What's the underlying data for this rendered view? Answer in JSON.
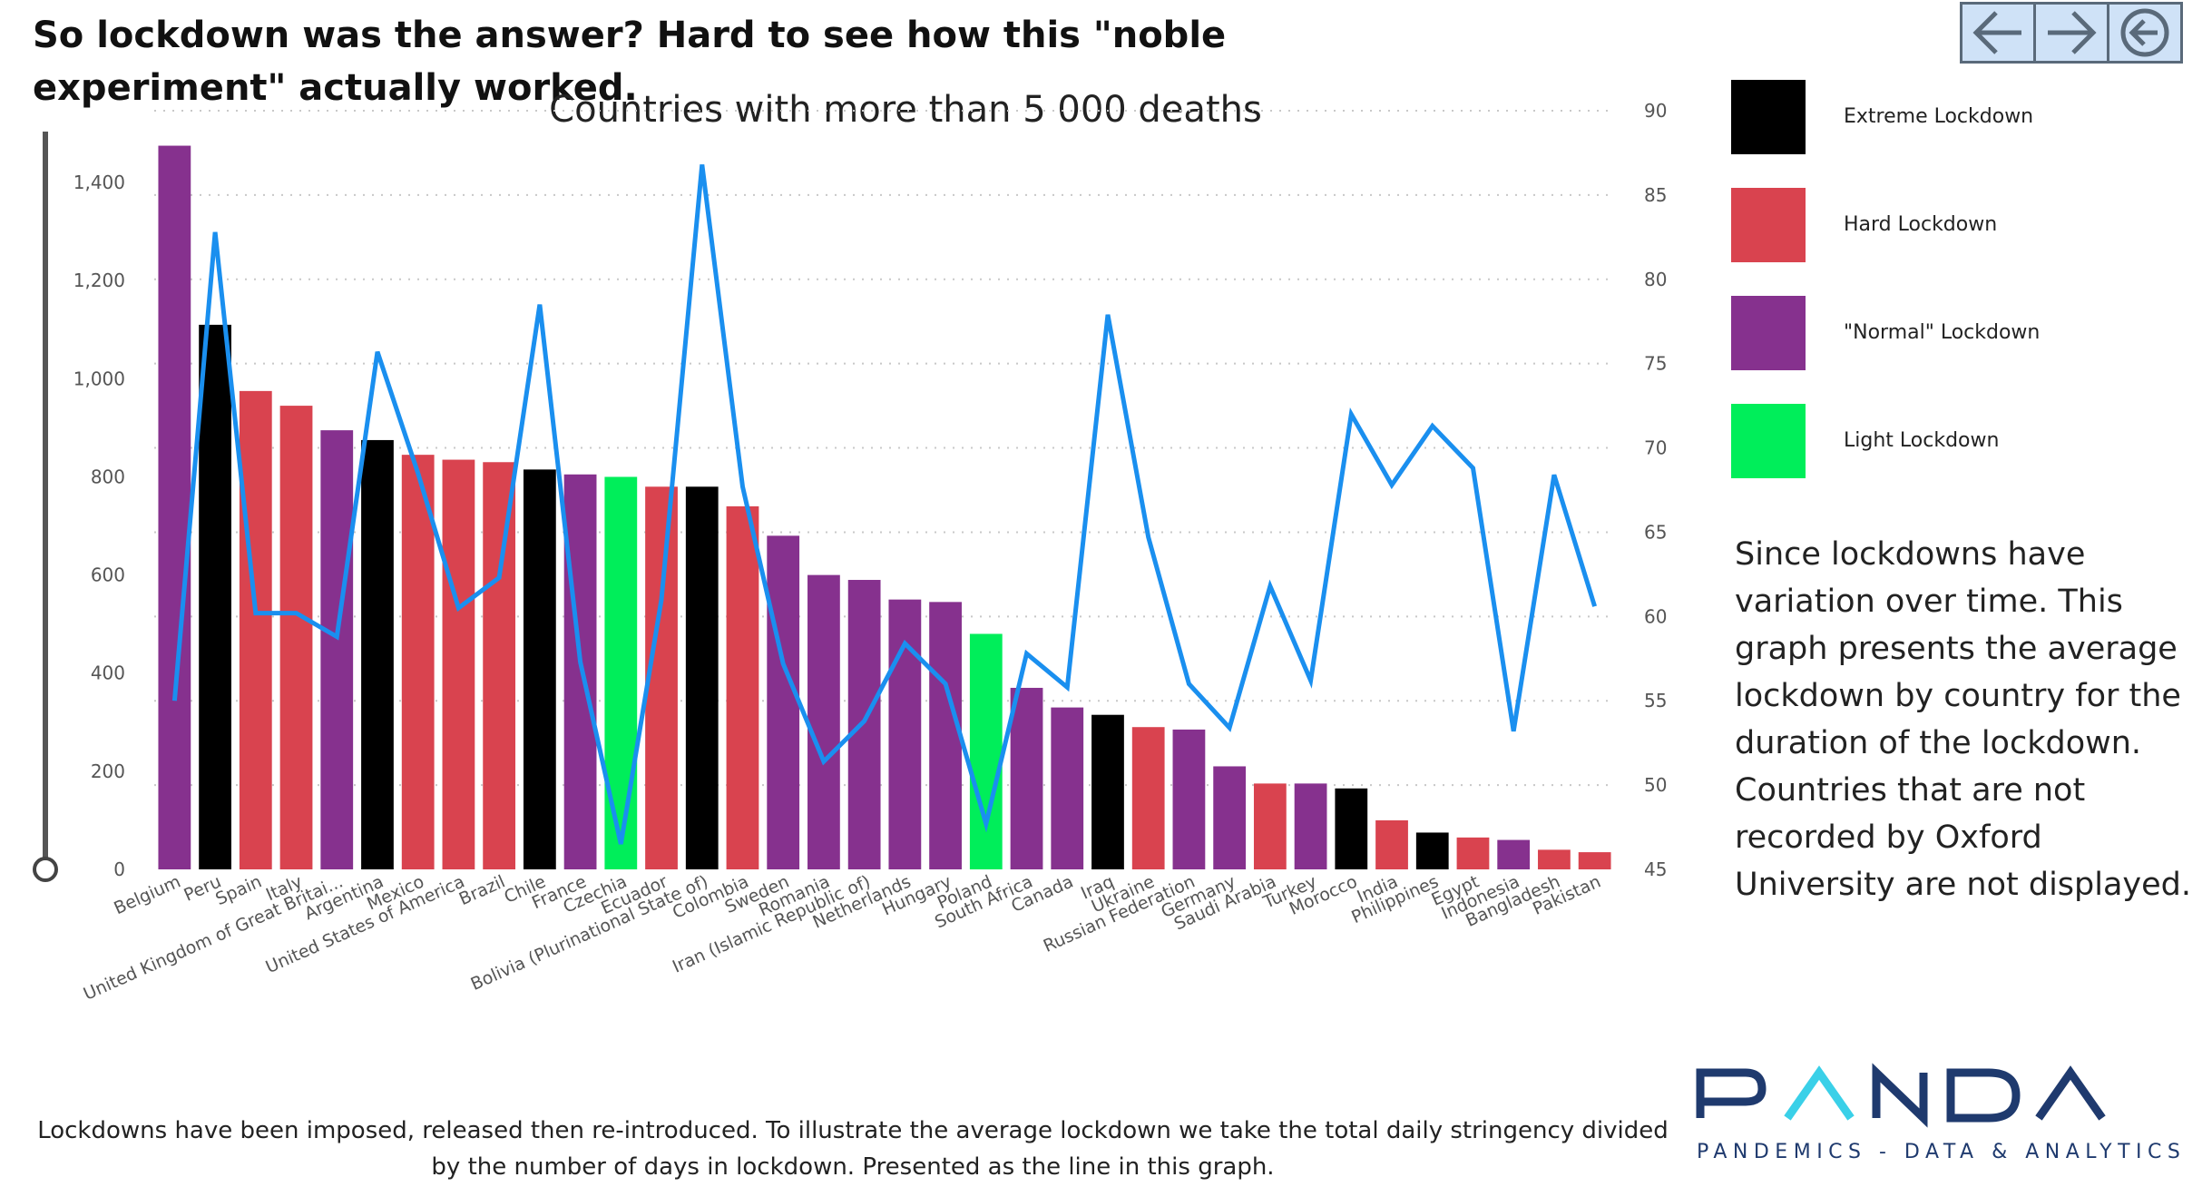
{
  "headline": "So lockdown was the answer? Hard to see how this \"noble experiment\" actually worked.",
  "nav": {
    "back_icon": "arrow-left-icon",
    "forward_icon": "arrow-right-icon",
    "return_icon": "circle-arrow-left-icon",
    "border_color": "#5a6a7a",
    "fill_color": "#cfe2f7"
  },
  "legend": [
    {
      "key": "extreme",
      "label": "Extreme Lockdown",
      "color": "#000000"
    },
    {
      "key": "hard",
      "label": "Hard Lockdown",
      "color": "#d9434f"
    },
    {
      "key": "normal",
      "label": "\"Normal\" Lockdown",
      "color": "#86318e"
    },
    {
      "key": "light",
      "label": "Light Lockdown",
      "color": "#00ee5a"
    }
  ],
  "note": "Since lockdowns have variation over time. This graph presents the average lockdown by country for the duration of the lockdown. Countries that are not recorded by Oxford University are not displayed.",
  "footnote": "Lockdowns have been imposed, released then re-introduced. To illustrate the average lockdown we take the total daily stringency divided by the number of days in lockdown. Presented as the line in this graph.",
  "logo": {
    "name": "PANDA",
    "tagline": "PANDEMICS - DATA & ANALYTICS",
    "dark_color": "#1f3a6e",
    "accent_color": "#3ad0e8"
  },
  "chart_data": {
    "type": "bar",
    "title": "Countries with more than 5 000 deaths",
    "categories": [
      "Belgium",
      "Peru",
      "Spain",
      "Italy",
      "United Kingdom of Great Britai...",
      "Argentina",
      "Mexico",
      "United States of America",
      "Brazil",
      "Chile",
      "France",
      "Czechia",
      "Ecuador",
      "Bolivia (Plurinational State of)",
      "Colombia",
      "Sweden",
      "Romania",
      "Iran (Islamic Republic of)",
      "Netherlands",
      "Hungary",
      "Poland",
      "South Africa",
      "Canada",
      "Iraq",
      "Ukraine",
      "Russian Federation",
      "Germany",
      "Saudi Arabia",
      "Turkey",
      "Morocco",
      "India",
      "Philippines",
      "Egypt",
      "Indonesia",
      "Bangladesh",
      "Pakistan"
    ],
    "bar_levels": [
      "normal",
      "extreme",
      "hard",
      "hard",
      "normal",
      "extreme",
      "hard",
      "hard",
      "hard",
      "extreme",
      "normal",
      "light",
      "hard",
      "extreme",
      "hard",
      "normal",
      "normal",
      "normal",
      "normal",
      "normal",
      "light",
      "normal",
      "normal",
      "extreme",
      "hard",
      "normal",
      "normal",
      "hard",
      "normal",
      "extreme",
      "hard",
      "extreme",
      "hard",
      "normal",
      "hard",
      "hard"
    ],
    "series": [
      {
        "axis": "left",
        "kind": "bar",
        "values": [
          1475,
          1110,
          975,
          945,
          895,
          875,
          845,
          835,
          830,
          815,
          805,
          800,
          780,
          780,
          740,
          680,
          600,
          590,
          550,
          545,
          480,
          370,
          330,
          315,
          290,
          285,
          210,
          175,
          175,
          165,
          100,
          75,
          65,
          60,
          40,
          35
        ]
      },
      {
        "axis": "right",
        "kind": "line",
        "color": "#1a8fef",
        "values": [
          55,
          82.8,
          60.2,
          60.2,
          58.8,
          75.7,
          68.5,
          60.5,
          62.3,
          78.5,
          57.3,
          46.5,
          61.0,
          86.8,
          67.7,
          57.2,
          51.4,
          53.8,
          58.4,
          56.0,
          47.7,
          57.8,
          55.8,
          77.9,
          64.7,
          56.0,
          53.4,
          61.8,
          56.2,
          72.0,
          67.8,
          71.3,
          68.8,
          53.2,
          68.4,
          60.6
        ]
      }
    ],
    "ylim": [
      0,
      1550
    ],
    "y_ticks": [
      0,
      200,
      400,
      600,
      800,
      "1,000",
      "1,200",
      "1,400"
    ],
    "y2lim": [
      45,
      90
    ],
    "y2_ticks": [
      45,
      50,
      55,
      60,
      65,
      70,
      75,
      80,
      85,
      90
    ],
    "grid": true,
    "legend_position": "right"
  }
}
